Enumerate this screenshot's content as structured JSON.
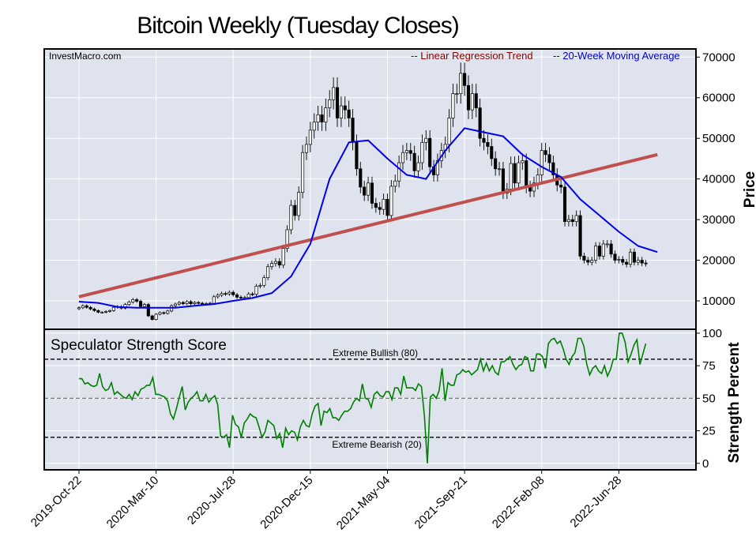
{
  "colors": {
    "background": "#dfe3ee",
    "grid": "#ffffff",
    "regression": "#c0504d",
    "moving_average": "#0000ee",
    "strength": "#008000",
    "regression_label": "#8b0000",
    "ma_label": "#0000cc"
  },
  "chart_data": [
    {
      "type": "candlestick",
      "title": "Bitcoin Weekly (Tuesday Closes)",
      "watermark": "InvestMacro.com",
      "ylabel": "Price",
      "ylim": [
        3000,
        72000
      ],
      "yticks": [
        10000,
        20000,
        30000,
        40000,
        50000,
        60000,
        70000
      ],
      "xlim": [
        -9,
        160
      ],
      "legend": {
        "position": "top-right",
        "regression_label": "-- Linear Regression Trend",
        "ma_label": "-- 20-Week Moving Average"
      },
      "regression": {
        "start": [
          0,
          11000
        ],
        "end": [
          150,
          46000
        ]
      },
      "moving_average": {
        "x": [
          0,
          5,
          10,
          15,
          20,
          25,
          30,
          35,
          40,
          45,
          50,
          55,
          60,
          65,
          70,
          75,
          80,
          85,
          90,
          95,
          100,
          105,
          110,
          115,
          120,
          125,
          130,
          135,
          140,
          145,
          150
        ],
        "values": [
          9800,
          9500,
          8500,
          8300,
          8300,
          8300,
          8800,
          9200,
          10000,
          10700,
          11900,
          16000,
          24000,
          40000,
          49000,
          49500,
          45000,
          41000,
          40000,
          47000,
          52500,
          51500,
          50500,
          46000,
          43000,
          40500,
          35000,
          31000,
          27000,
          23500,
          22000
        ]
      },
      "closes": [
        8300,
        8800,
        8400,
        8000,
        7600,
        7200,
        7200,
        7400,
        7600,
        8400,
        8600,
        8200,
        9100,
        9700,
        10300,
        9900,
        8600,
        9100,
        6300,
        5400,
        6700,
        7100,
        6900,
        7500,
        8800,
        9200,
        9600,
        9300,
        9800,
        9300,
        9600,
        9400,
        9200,
        9300,
        9400,
        11000,
        11400,
        11800,
        11700,
        12100,
        11500,
        10900,
        10700,
        10800,
        11700,
        11600,
        13600,
        13800,
        15700,
        18400,
        19200,
        19700,
        18800,
        22900,
        27500,
        33500,
        31000,
        36700,
        46500,
        48500,
        52000,
        54000,
        55800,
        54000,
        57500,
        59500,
        62500,
        55000,
        58000,
        57000,
        55000,
        49000,
        42500,
        38000,
        36000,
        39000,
        34000,
        33000,
        32500,
        35000,
        31000,
        38200,
        39500,
        44000,
        46500,
        47000,
        46300,
        42000,
        44000,
        49000,
        50000,
        43000,
        41000,
        44500,
        47000,
        48500,
        55000,
        61000,
        61000,
        66000,
        63000,
        57000,
        61000,
        57500,
        50000,
        49000,
        48000,
        45000,
        42500,
        42500,
        36500,
        37500,
        43800,
        39000,
        44000,
        44500,
        38000,
        37000,
        39000,
        41000,
        47000,
        46000,
        44000,
        41000,
        38500,
        38000,
        29500,
        30000,
        29500,
        31000,
        21000,
        20000,
        19500,
        20000,
        23500,
        21000,
        24000,
        24000,
        21500,
        20000,
        20200,
        19500,
        19000,
        22000,
        19500,
        20000,
        19300,
        19200
      ]
    },
    {
      "type": "line",
      "title": "Speculator Strength Score",
      "ylabel": "Strength Percent",
      "ylim": [
        -5,
        103
      ],
      "yticks": [
        0,
        25,
        50,
        75,
        100
      ],
      "extreme_bullish": {
        "value": 80,
        "label": "Extreme Bullish (80)"
      },
      "extreme_bearish": {
        "value": 20,
        "label": "Extreme Bearish (20)"
      },
      "midline": 50,
      "values": [
        65,
        65,
        61,
        62,
        60,
        59,
        60,
        69,
        59,
        56,
        57,
        62,
        53,
        55,
        53,
        51,
        50,
        53,
        49,
        55,
        52,
        57,
        58,
        60,
        60,
        66,
        53,
        53,
        52,
        51,
        48,
        38,
        34,
        42,
        51,
        59,
        41,
        47,
        50,
        52,
        55,
        48,
        48,
        53,
        47,
        50,
        52,
        45,
        21,
        20,
        22,
        12,
        37,
        30,
        28,
        20,
        31,
        34,
        38,
        36,
        35,
        28,
        20,
        24,
        33,
        31,
        29,
        19,
        23,
        12,
        27,
        22,
        25,
        24,
        18,
        28,
        33,
        29,
        28,
        38,
        44,
        46,
        29,
        40,
        39,
        42,
        35,
        35,
        33,
        37,
        40,
        40,
        42,
        47,
        50,
        48,
        61,
        50,
        49,
        43,
        53,
        55,
        52,
        51,
        55,
        55,
        49,
        58,
        58,
        53,
        67,
        58,
        58,
        58,
        56,
        61,
        59,
        37,
        0,
        51,
        53,
        50,
        56,
        73,
        48,
        62,
        60,
        60,
        68,
        69,
        72,
        70,
        71,
        68,
        70,
        72,
        80,
        71,
        77,
        71,
        75,
        70,
        68,
        78,
        78,
        80,
        82,
        76,
        72,
        75,
        76,
        82,
        81,
        71,
        71,
        84,
        84,
        82,
        73,
        92,
        95,
        96,
        92,
        94,
        88,
        80,
        76,
        82,
        85,
        96,
        96,
        90,
        76,
        68,
        73,
        75,
        71,
        69,
        75,
        67,
        72,
        80,
        80,
        100,
        100,
        93,
        78,
        84,
        91,
        95,
        76,
        84,
        92
      ]
    }
  ],
  "x_axis": {
    "tick_labels": [
      "2019-Oct-22",
      "2020-Mar-10",
      "2020-Jul-28",
      "2020-Dec-15",
      "2021-May-04",
      "2021-Sep-21",
      "2022-Feb-08",
      "2022-Jun-28"
    ],
    "tick_indices": [
      0,
      20,
      40,
      60,
      80,
      100,
      120,
      140
    ]
  }
}
